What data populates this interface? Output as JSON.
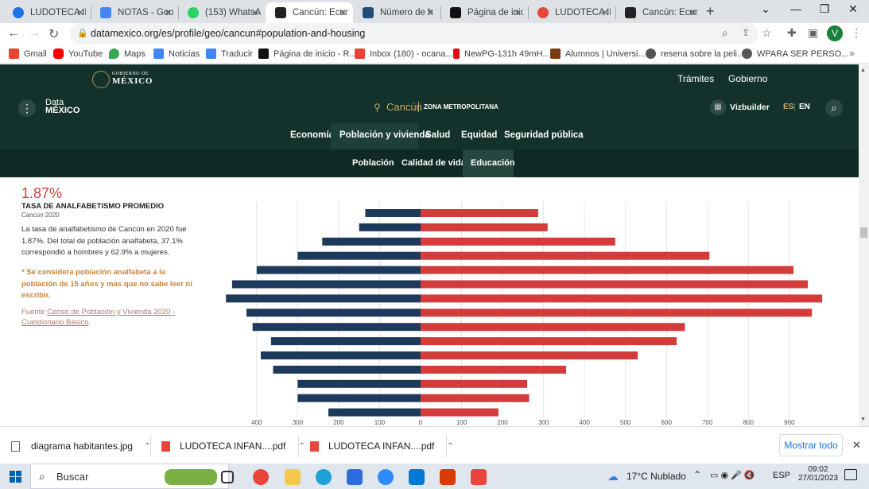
{
  "browser": {
    "tabs": [
      {
        "label": "LUDOTECA IN",
        "color": "#1a73e8"
      },
      {
        "label": "NOTAS - Goo",
        "color": "#4285f4"
      },
      {
        "label": "(153) WhatsA",
        "color": "#25d366"
      },
      {
        "label": "Cancún: Econ",
        "color": "#222222"
      },
      {
        "label": "Número de h",
        "color": "#1f4e79"
      },
      {
        "label": "Página de inic",
        "color": "#111111"
      },
      {
        "label": "LUDOTECA IN",
        "color": "#e8453c"
      },
      {
        "label": "Cancún: Econ",
        "color": "#222222"
      }
    ],
    "active_tab": 3,
    "url": "datamexico.org/es/profile/geo/cancun#population-and-housing",
    "profile_letter": "V",
    "bookmarks": [
      {
        "label": "Gmail",
        "color": "#ea4335"
      },
      {
        "label": "YouTube",
        "color": "#ff0000"
      },
      {
        "label": "Maps",
        "color": "#34a853"
      },
      {
        "label": "Noticias",
        "color": "#4285f4"
      },
      {
        "label": "Traducir",
        "color": "#4285f4"
      },
      {
        "label": "Página de inicio - R...",
        "color": "#111111"
      },
      {
        "label": "Inbox (180) - ocana...",
        "color": "#ea4335"
      },
      {
        "label": "NewPG-131h 49mH...",
        "color": "#e50914"
      },
      {
        "label": "Alumnos | Universi...",
        "color": "#7a3b12"
      },
      {
        "label": "resena sobre la peli...",
        "color": "#555555"
      },
      {
        "label": "WPARA SER PERSO...",
        "color": "#555555"
      }
    ]
  },
  "site": {
    "gob_logo_top": "GOBIERNO DE",
    "gob_logo_bottom": "MÉXICO",
    "top_links": [
      "Trámites",
      "Gobierno"
    ],
    "brand_top": "Data",
    "brand_bottom": "MÉXICO",
    "place": "Cancún",
    "place_sub": "ZONA METROPOLITANA",
    "vizbuilder": "Vizbuilder",
    "lang_es": "ES",
    "lang_en": "EN",
    "main_nav": [
      "Economía",
      "Población y vivienda",
      "Salud",
      "Equidad",
      "Seguridad pública"
    ],
    "main_nav_active": 1,
    "sub_nav": [
      "Población",
      "Calidad de vida",
      "Educación"
    ],
    "sub_nav_active": 2
  },
  "stat": {
    "value": "1.87%",
    "title": "TASA DE ANALFABETISMO PROMEDIO",
    "subtitle": "Cancún 2020",
    "desc_line1": "La tasa de analfabetismo de Cancún en 2020 fue",
    "desc_line2": "1.87%. Del total de población analfabeta, 37.1%",
    "desc_line3": "correspondió a hombres y 62.9% a mujeres.",
    "note_line1": "* Se considera población analfabeta a la",
    "note_line2": "población de 15 años y más que no sabe leer ni",
    "note_line3": "escribir.",
    "source_label": "Fuente",
    "source_link_line1": "Censo de Población y Vivienda 2020 -",
    "source_link_line2": "Cuestionario Básico",
    "source_end": "."
  },
  "chart_data": {
    "type": "bar",
    "orientation": "horizontal-diverging",
    "x_ticks": [
      "400",
      "300",
      "200",
      "100",
      "0",
      "100",
      "200",
      "300",
      "400",
      "500",
      "600",
      "700",
      "800",
      "900"
    ],
    "xlim": [
      -400,
      900
    ],
    "grid": true,
    "series": [
      {
        "color": "#1d3a5c",
        "values": [
          135,
          150,
          240,
          300,
          400,
          460,
          475,
          425,
          410,
          365,
          390,
          360,
          300,
          300,
          225
        ]
      },
      {
        "color": "#d43c3c",
        "values": [
          287,
          310,
          475,
          705,
          910,
          945,
          980,
          955,
          645,
          625,
          530,
          355,
          260,
          265,
          190
        ]
      }
    ]
  },
  "downloads": {
    "items": [
      "diagrama habitantes.jpg",
      "LUDOTECA INFAN....pdf",
      "LUDOTECA INFAN....pdf"
    ],
    "show_all": "Mostrar todo"
  },
  "taskbar": {
    "search": "Buscar",
    "weather": "17°C  Nublado",
    "lang": "ESP",
    "time": "09:02",
    "date": "27/01/2023"
  }
}
